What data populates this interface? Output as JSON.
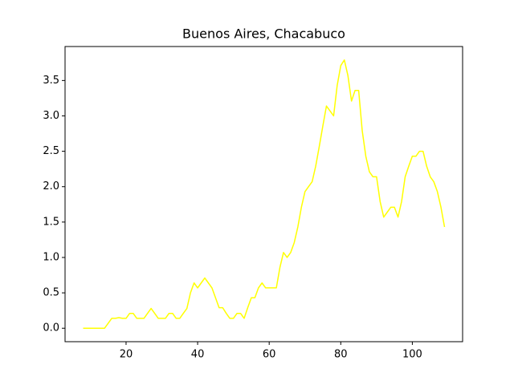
{
  "chart_data": {
    "type": "line",
    "title": "Buenos Aires, Chacabuco",
    "x": [
      8,
      9,
      10,
      11,
      12,
      13,
      14,
      15,
      16,
      17,
      18,
      19,
      20,
      21,
      22,
      23,
      24,
      25,
      26,
      27,
      28,
      29,
      30,
      31,
      32,
      33,
      34,
      35,
      36,
      37,
      38,
      39,
      40,
      41,
      42,
      43,
      44,
      45,
      46,
      47,
      48,
      49,
      50,
      51,
      52,
      53,
      54,
      55,
      56,
      57,
      58,
      59,
      60,
      61,
      62,
      63,
      64,
      65,
      66,
      67,
      68,
      69,
      70,
      71,
      72,
      73,
      74,
      75,
      76,
      77,
      78,
      79,
      80,
      81,
      82,
      83,
      84,
      85,
      86,
      87,
      88,
      89,
      90,
      91,
      92,
      93,
      94,
      95,
      96,
      97,
      98,
      99,
      100,
      101,
      102,
      103,
      104,
      105,
      106,
      107,
      108,
      109
    ],
    "series": [
      {
        "color": "#ffff00",
        "values": [
          0,
          0,
          0,
          0,
          0,
          0,
          0,
          0.07,
          0.14,
          0.14,
          0.15,
          0.14,
          0.14,
          0.21,
          0.21,
          0.14,
          0.14,
          0.14,
          0.21,
          0.28,
          0.21,
          0.14,
          0.14,
          0.14,
          0.21,
          0.21,
          0.14,
          0.14,
          0.21,
          0.28,
          0.5,
          0.64,
          0.57,
          0.64,
          0.71,
          0.64,
          0.57,
          0.43,
          0.29,
          0.29,
          0.21,
          0.14,
          0.14,
          0.21,
          0.21,
          0.14,
          0.29,
          0.43,
          0.43,
          0.57,
          0.64,
          0.57,
          0.57,
          0.57,
          0.57,
          0.86,
          1.07,
          1.0,
          1.07,
          1.21,
          1.43,
          1.71,
          1.93,
          2.0,
          2.07,
          2.29,
          2.57,
          2.86,
          3.14,
          3.07,
          3.0,
          3.43,
          3.71,
          3.79,
          3.57,
          3.21,
          3.36,
          3.36,
          2.79,
          2.43,
          2.21,
          2.14,
          2.14,
          1.79,
          1.57,
          1.64,
          1.71,
          1.71,
          1.57,
          1.79,
          2.14,
          2.29,
          2.43,
          2.43,
          2.5,
          2.5,
          2.29,
          2.14,
          2.07,
          1.93,
          1.71,
          1.43
        ]
      }
    ],
    "xlim": [
      2.95,
      114.05
    ],
    "xticks": [
      20,
      40,
      60,
      80,
      100
    ],
    "ylim": [
      -0.19,
      3.98
    ],
    "yticks": [
      {
        "value": 0,
        "label": "0.0"
      },
      0.5,
      {
        "value": 1,
        "label": "1.0"
      },
      1.5,
      {
        "value": 2,
        "label": "2.0"
      },
      2.5,
      {
        "value": 3,
        "label": "3.0"
      },
      3.5
    ]
  }
}
